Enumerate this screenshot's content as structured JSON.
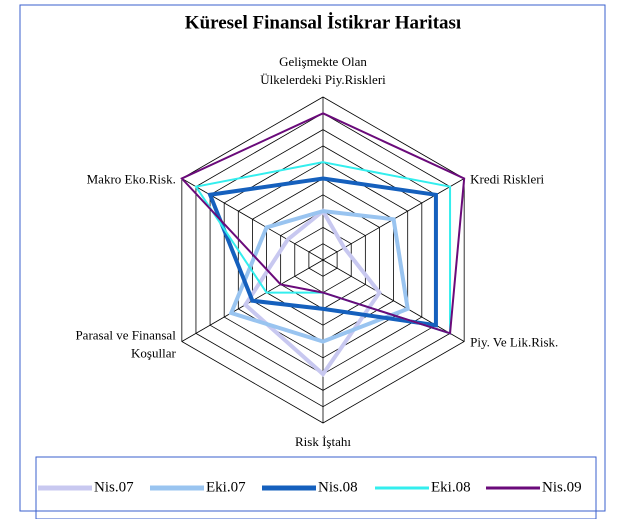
{
  "chart_data": {
    "type": "radar",
    "title": "Küresel Finansal İstikrar Haritası",
    "categories": [
      [
        "Gelişmekte Olan",
        "Ülkelerdeki Piy.Riskleri"
      ],
      [
        "Kredi Riskleri"
      ],
      [
        "Piy. Ve Lik.Risk."
      ],
      [
        "Risk İştahı"
      ],
      [
        "Parasal ve Finansal",
        "Koşullar"
      ],
      [
        "Makro Eko.Risk."
      ]
    ],
    "rlim": [
      0,
      10
    ],
    "rticks": [
      1,
      2,
      3,
      4,
      5,
      6,
      7,
      8,
      9,
      10
    ],
    "legend": "bottom",
    "series": [
      {
        "name": "Nis.07",
        "color": "#c8c8f0",
        "width": 4,
        "values": [
          3,
          1.5,
          4,
          7,
          5.5,
          2.5
        ]
      },
      {
        "name": "Eki.07",
        "color": "#99c4f0",
        "width": 4,
        "values": [
          3,
          5,
          6,
          5,
          6.5,
          4
        ]
      },
      {
        "name": "Nis.08",
        "color": "#1560bd",
        "width": 4,
        "values": [
          5,
          8,
          8,
          3,
          5,
          8
        ]
      },
      {
        "name": "Eki.08",
        "color": "#33eeee",
        "width": 2,
        "values": [
          6,
          9,
          9,
          2,
          4,
          9
        ]
      },
      {
        "name": "Nis.09",
        "color": "#6a0a7a",
        "width": 2,
        "values": [
          9,
          10,
          9,
          2,
          3,
          10
        ]
      }
    ]
  }
}
